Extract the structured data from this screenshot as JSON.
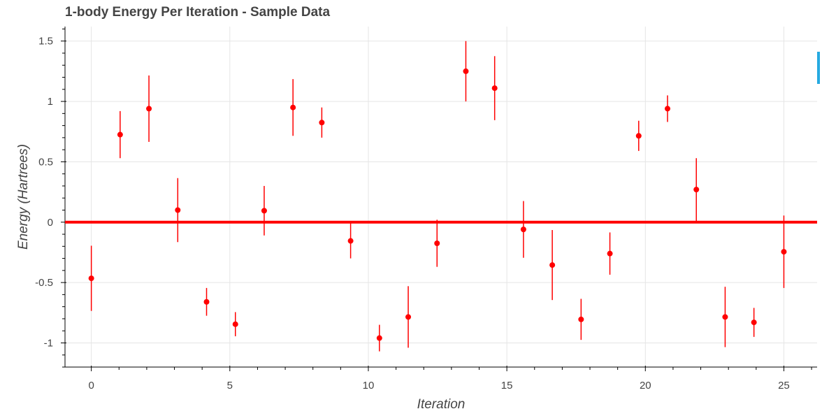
{
  "chart_data": {
    "type": "scatter",
    "title": "1-body Energy Per Iteration - Sample Data",
    "xlabel": "Iteration",
    "ylabel": "Energy (Hartrees)",
    "xlim": [
      -0.95,
      26.2
    ],
    "ylim": [
      -1.2,
      1.62
    ],
    "x_ticks": [
      0,
      5,
      10,
      15,
      20,
      25
    ],
    "y_ticks": [
      -1,
      -0.5,
      0,
      0.5,
      1,
      1.5
    ],
    "y_tick_labels": [
      "-1",
      "-0.5",
      "0",
      "0.5",
      "1",
      "1.5"
    ],
    "x_tick_labels": [
      "0",
      "5",
      "10",
      "15",
      "20",
      "25"
    ],
    "grid": true,
    "reference_line": {
      "y": 0,
      "color": "#ff0000"
    },
    "point_color": "#ff0000",
    "series": [
      {
        "x": [
          0,
          1.04,
          2.08,
          3.12,
          4.16,
          5.2,
          6.24,
          7.28,
          8.32,
          9.36,
          10.4,
          11.44,
          12.48,
          13.52,
          14.56,
          15.6,
          16.64,
          17.68,
          18.72,
          19.76,
          20.8,
          21.84,
          22.88,
          23.92,
          25
        ],
        "y": [
          -0.465,
          0.725,
          0.94,
          0.1,
          -0.66,
          -0.845,
          0.095,
          0.95,
          0.825,
          -0.155,
          -0.96,
          -0.785,
          -0.175,
          1.25,
          1.11,
          -0.06,
          -0.355,
          -0.805,
          -0.26,
          0.715,
          0.94,
          0.27,
          -0.785,
          -0.83,
          -0.245
        ],
        "error": [
          0.27,
          0.195,
          0.275,
          0.265,
          0.115,
          0.1,
          0.205,
          0.235,
          0.125,
          0.145,
          0.11,
          0.255,
          0.195,
          0.25,
          0.265,
          0.235,
          0.29,
          0.17,
          0.175,
          0.125,
          0.11,
          0.26,
          0.25,
          0.12,
          0.3
        ]
      }
    ]
  }
}
